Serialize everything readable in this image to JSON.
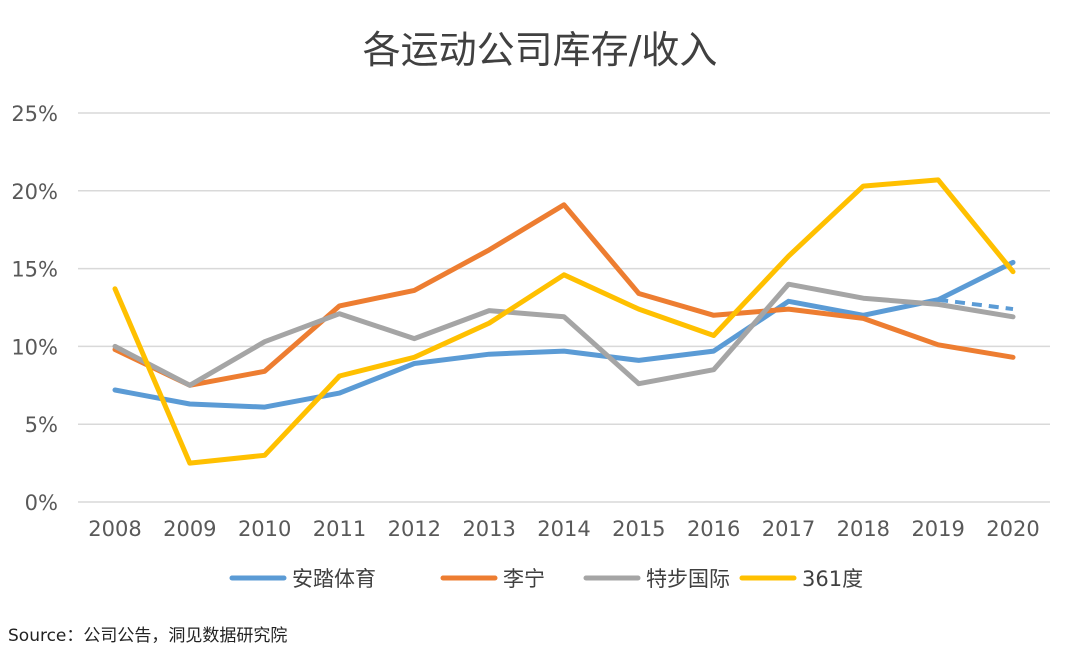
{
  "chart_data": {
    "type": "line",
    "title": "各运动公司库存/收入",
    "xlabel": "",
    "ylabel": "",
    "categories": [
      "2008",
      "2009",
      "2010",
      "2011",
      "2012",
      "2013",
      "2014",
      "2015",
      "2016",
      "2017",
      "2018",
      "2019",
      "2020"
    ],
    "y_ticks": [
      "0%",
      "5%",
      "10%",
      "15%",
      "20%",
      "25%"
    ],
    "ylim": [
      0,
      25
    ],
    "grid": true,
    "legend_position": "bottom",
    "series": [
      {
        "name": "安踏体育",
        "color": "#5B9BD5",
        "values": [
          7.2,
          6.3,
          6.1,
          7.0,
          8.9,
          9.5,
          9.7,
          9.1,
          9.7,
          12.9,
          12.0,
          13.0,
          15.4
        ],
        "dashed_extension": {
          "from_index": 11,
          "value_2020": 12.4
        }
      },
      {
        "name": "李宁",
        "color": "#ED7D31",
        "values": [
          9.8,
          7.5,
          8.4,
          12.6,
          13.6,
          16.2,
          19.1,
          13.4,
          12.0,
          12.4,
          11.8,
          10.1,
          9.3
        ]
      },
      {
        "name": "特步国际",
        "color": "#A5A5A5",
        "values": [
          10.0,
          7.5,
          10.3,
          12.1,
          10.5,
          12.3,
          11.9,
          7.6,
          8.5,
          14.0,
          13.1,
          12.7,
          11.9
        ]
      },
      {
        "name": "361度",
        "color": "#FFC000",
        "values": [
          13.7,
          2.5,
          3.0,
          8.1,
          9.3,
          11.5,
          14.6,
          12.4,
          10.7,
          15.8,
          20.3,
          20.7,
          14.8
        ]
      }
    ]
  },
  "source": "Source：公司公告，洞见数据研究院"
}
